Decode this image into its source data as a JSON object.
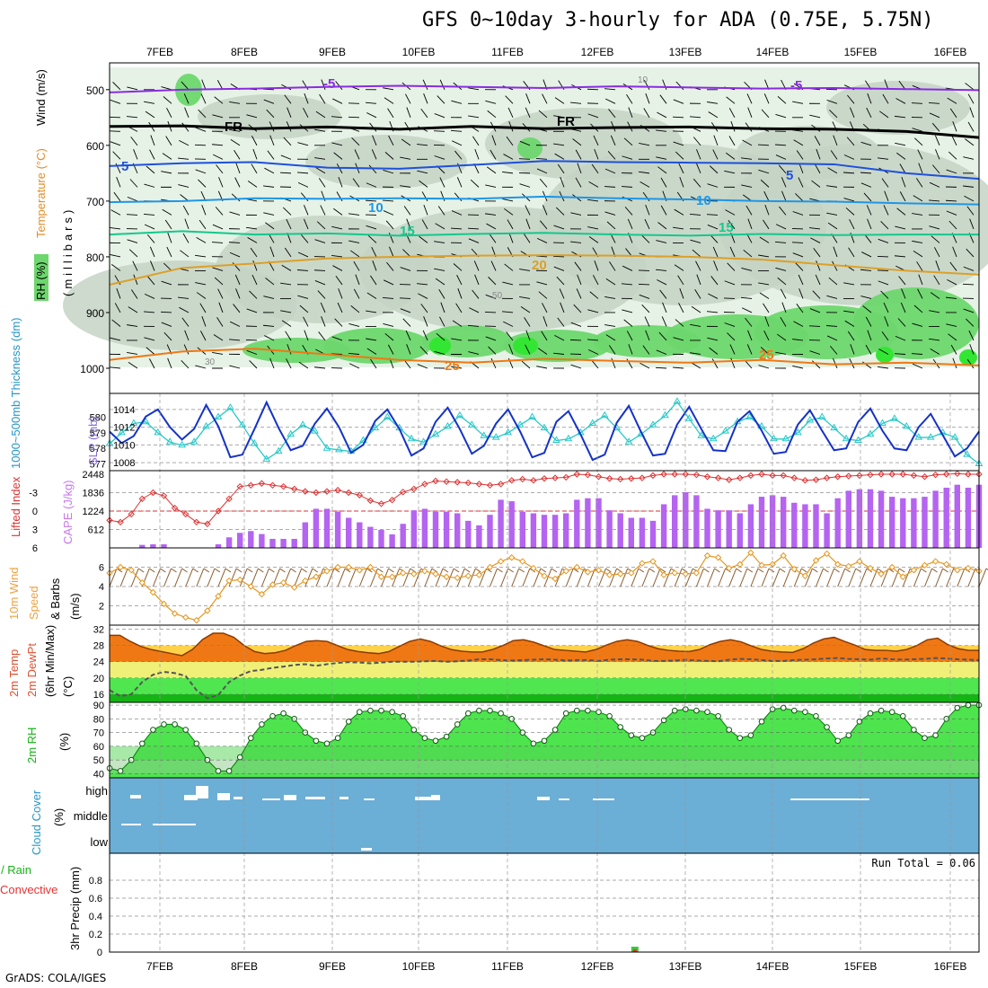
{
  "title": "GFS 0~10day 3-hourly for ADA (0.75E, 5.75N)",
  "credit": "GrADS: COLA/IGES",
  "colors": {
    "rh_light": "#e6f2e6",
    "rh_mid": "#c4d4c4",
    "rh_green": "#6dd76d",
    "rh_bright": "#33e633",
    "iso_m5": "#8a2be2",
    "iso_fr": "#000000",
    "iso_5": "#1e50dc",
    "iso_10": "#1e96e6",
    "iso_15": "#14c88c",
    "iso_20": "#dca028",
    "iso_25": "#f07814",
    "slp": "#1432c8",
    "thickness": "#28c8c8",
    "li": "#dc3232",
    "cape": "#b464f0",
    "wind": "#e6961e",
    "barb": "#8b5a2b",
    "temp_fill": "#f07814",
    "dew": "#555555",
    "rh2m": "#14c814",
    "cloud": "#6baed6"
  },
  "chart_data": [
    {
      "type": "line",
      "panel": "upper-air cross-section",
      "ylabel": [
        "RH (%)",
        "Temperature (°C)",
        "Wind (m/s)",
        "(millibars)"
      ],
      "x_tick_labels": [
        "7FEB",
        "8FEB",
        "9FEB",
        "10FEB",
        "11FEB",
        "12FEB",
        "13FEB",
        "14FEB",
        "15FEB",
        "16FEB"
      ],
      "ylim": [
        1000,
        460
      ],
      "y_ticks": [
        500,
        600,
        700,
        800,
        900,
        1000
      ],
      "isotherm_labels": [
        "-5",
        "FR",
        "5",
        "10",
        "15",
        "20",
        "25"
      ],
      "rh_labels": [
        "30",
        "50",
        "10"
      ],
      "series": [
        {
          "name": "-5",
          "values": [
            505,
            500,
            498,
            495,
            493,
            495,
            497,
            494,
            496,
            498,
            497,
            499,
            501
          ]
        },
        {
          "name": "FR",
          "values": [
            566,
            565,
            570,
            567,
            571,
            566,
            570,
            568,
            567,
            570,
            571,
            575,
            586
          ]
        },
        {
          "name": "5",
          "values": [
            637,
            632,
            630,
            640,
            642,
            635,
            628,
            630,
            631,
            632,
            634,
            650,
            660
          ]
        },
        {
          "name": "10",
          "values": [
            702,
            700,
            695,
            696,
            695,
            696,
            692,
            695,
            697,
            700,
            701,
            704,
            706
          ]
        },
        {
          "name": "15",
          "values": [
            760,
            754,
            760,
            758,
            762,
            759,
            757,
            760,
            762,
            759,
            761,
            760,
            760
          ]
        },
        {
          "name": "20",
          "values": [
            850,
            820,
            812,
            803,
            800,
            798,
            797,
            798,
            800,
            805,
            815,
            825,
            832
          ]
        },
        {
          "name": "25",
          "values": [
            985,
            970,
            965,
            975,
            985,
            990,
            983,
            987,
            990,
            985,
            993,
            990,
            995
          ]
        }
      ]
    },
    {
      "type": "line",
      "panel": "SLP and thickness",
      "ylabel_left": "1000~500mb Thickness (dm)",
      "ylabel_right": "SLP (mb)",
      "left_ticks": [
        577,
        578,
        579,
        580
      ],
      "left_range": [
        576.8,
        581.3
      ],
      "right_ticks": [
        1008,
        1010,
        1012,
        1014
      ],
      "right_range": [
        1007.5,
        1015.4
      ],
      "series": [
        {
          "name": "SLP (mb)",
          "values": [
            1011.5,
            1010.2,
            1011.0,
            1013.2,
            1014.0,
            1012.0,
            1010.6,
            1011.8,
            1014.5,
            1012.1,
            1008.6,
            1008.9,
            1011.8,
            1014.8,
            1011.9,
            1009.4,
            1009.9,
            1012.4,
            1014.1,
            1012.0,
            1009.1,
            1010.0,
            1012.7,
            1014.0,
            1011.8,
            1008.8,
            1009.6,
            1012.6,
            1014.2,
            1011.8,
            1009.0,
            1009.9,
            1012.4,
            1014.0,
            1011.5,
            1008.6,
            1009.1,
            1012.6,
            1013.8,
            1011.2,
            1008.3,
            1008.9,
            1012.5,
            1014.4,
            1011.5,
            1008.8,
            1009.0,
            1012.3,
            1014.3,
            1011.8,
            1009.4,
            1009.3,
            1012.6,
            1013.8,
            1011.6,
            1009.0,
            1009.2,
            1012.3,
            1013.9,
            1011.6,
            1009.4,
            1009.6,
            1012.6,
            1014.1,
            1011.6,
            1009.6,
            1009.4,
            1012.0,
            1013.5,
            1011.1,
            1008.7,
            1009.6,
            1011.5
          ]
        },
        {
          "name": "Thickness (dm)",
          "values": [
            578.3,
            579.0,
            579.6,
            579.7,
            579.0,
            578.4,
            578.2,
            578.4,
            579.4,
            580.0,
            580.6,
            579.5,
            578.3,
            577.3,
            577.8,
            578.9,
            579.5,
            579.1,
            578.0,
            577.9,
            577.8,
            578.5,
            579.3,
            580.0,
            579.3,
            578.6,
            578.4,
            578.9,
            579.4,
            580.1,
            579.5,
            578.8,
            578.7,
            579.0,
            579.5,
            580.0,
            579.3,
            578.5,
            578.6,
            579.0,
            579.6,
            580.1,
            579.3,
            578.4,
            578.9,
            579.5,
            580.1,
            581.0,
            579.9,
            578.8,
            578.6,
            579.1,
            579.7,
            580.0,
            579.4,
            578.6,
            578.6,
            579.0,
            579.8,
            580.0,
            579.3,
            578.6,
            578.5,
            578.9,
            579.6,
            579.9,
            579.4,
            578.7,
            578.7,
            579.0,
            578.7,
            577.6,
            577.0
          ]
        }
      ]
    },
    {
      "type": "bar",
      "panel": "CAPE and Lifted Index",
      "ylabel_left": "Lifted Index",
      "ylabel_right": "CAPE (J/kg)",
      "li_ticks": [
        "-3",
        "0",
        "3",
        "6"
      ],
      "li_range": [
        -6,
        6
      ],
      "cape_ticks": [
        "612",
        "1224",
        "1836",
        "2448"
      ],
      "cape_range": [
        0,
        2448
      ],
      "series": [
        {
          "name": "CAPE (J/kg)",
          "values": [
            0,
            0,
            0,
            100,
            120,
            120,
            0,
            0,
            0,
            0,
            120,
            350,
            500,
            560,
            460,
            300,
            300,
            300,
            850,
            1300,
            1300,
            1200,
            1000,
            850,
            700,
            600,
            450,
            800,
            1250,
            1300,
            1200,
            1200,
            1150,
            900,
            750,
            1100,
            1600,
            1550,
            1200,
            1150,
            1100,
            1100,
            1150,
            1600,
            1650,
            1650,
            1250,
            1150,
            1000,
            1000,
            900,
            1450,
            1750,
            1850,
            1750,
            1300,
            1250,
            1250,
            1150,
            1450,
            1700,
            1750,
            1700,
            1500,
            1450,
            1450,
            1150,
            1650,
            1900,
            1950,
            1950,
            1900,
            1700,
            1650,
            1650,
            1700,
            1900,
            2000,
            2100,
            2000,
            2100
          ]
        },
        {
          "name": "Lifted Index",
          "values": [
            1.5,
            1.8,
            0.5,
            -2.0,
            -3.0,
            -2.5,
            -0.5,
            0.5,
            1.8,
            2.1,
            0.0,
            -2.0,
            -4.0,
            -4.2,
            -4.5,
            -4.2,
            -4.0,
            -3.6,
            -3.2,
            -3.0,
            -3.2,
            -3.4,
            -3.0,
            -2.6,
            -1.7,
            -1.2,
            -1.8,
            -3.1,
            -3.6,
            -4.4,
            -4.9,
            -4.8,
            -4.7,
            -4.6,
            -4.4,
            -4.2,
            -4.4,
            -5.0,
            -5.2,
            -5.0,
            -5.3,
            -5.4,
            -5.5,
            -6.0,
            -5.9,
            -5.6,
            -5.3,
            -5.2,
            -5.3,
            -5.4,
            -5.8,
            -6.0,
            -6.0,
            -6.0,
            -5.9,
            -5.6,
            -5.4,
            -5.1,
            -5.4,
            -5.8,
            -6.0,
            -5.8,
            -5.8,
            -5.4,
            -5.0,
            -5.1,
            -5.4,
            -5.6,
            -5.7,
            -5.8,
            -5.9,
            -6.0,
            -6.0,
            -6.0,
            -5.8,
            -5.6,
            -5.9,
            -6.0,
            -6.1,
            -6.0,
            -6.0
          ]
        }
      ]
    },
    {
      "type": "line",
      "panel": "10m wind",
      "ylabel": [
        "10m Wind",
        "Speed",
        "& Barbs",
        "(m/s)"
      ],
      "y_ticks": [
        2,
        4,
        6
      ],
      "ylim": [
        0,
        8
      ],
      "series": [
        {
          "name": "Speed (m/s)",
          "values": [
            5.4,
            6.0,
            5.7,
            4.4,
            3.4,
            2.2,
            1.2,
            0.8,
            0.5,
            1.5,
            3.0,
            4.6,
            4.7,
            4.0,
            3.2,
            4.2,
            4.4,
            3.9,
            4.6,
            5.0,
            5.6,
            6.0,
            6.0,
            5.7,
            6.0,
            5.0,
            5.0,
            5.4,
            5.3,
            5.6,
            5.3,
            5.0,
            4.9,
            5.1,
            5.2,
            6.0,
            6.6,
            7.0,
            6.6,
            5.9,
            5.1,
            4.8,
            5.6,
            6.0,
            5.5,
            5.7,
            5.2,
            5.3,
            5.4,
            6.4,
            6.6,
            5.2,
            5.4,
            5.3,
            5.4,
            7.2,
            7.0,
            5.9,
            6.3,
            7.5,
            6.2,
            6.3,
            7.2,
            5.8,
            5.1,
            6.7,
            7.4,
            6.3,
            6.1,
            6.6,
            5.9,
            5.3,
            6.0,
            5.0,
            5.7,
            6.2,
            6.6,
            6.3,
            5.7,
            5.9,
            5.6
          ]
        }
      ]
    },
    {
      "type": "area",
      "panel": "2m temperature and dewpoint",
      "ylabel": [
        "2m Temp",
        "2m DewPt",
        "(6hr Min/Max)",
        "(°C)"
      ],
      "y_ticks": [
        16,
        20,
        24,
        28,
        32
      ],
      "ylim": [
        14,
        33
      ],
      "series": [
        {
          "name": "2m Temp (°C)",
          "values": [
            30.5,
            30.5,
            29.0,
            27.8,
            27.0,
            26.5,
            26.0,
            25.5,
            27.0,
            29.5,
            31.0,
            31.0,
            30.0,
            28.0,
            26.5,
            26.0,
            26.2,
            26.8,
            28.0,
            29.0,
            29.2,
            29.0,
            28.0,
            27.0,
            26.5,
            26.2,
            26.0,
            26.5,
            27.8,
            29.0,
            29.6,
            29.0,
            27.9,
            27.0,
            26.6,
            26.4,
            26.4,
            27.0,
            28.0,
            29.2,
            29.4,
            28.8,
            27.9,
            27.0,
            26.8,
            26.6,
            26.4,
            27.0,
            28.1,
            29.0,
            29.4,
            29.0,
            28.0,
            27.2,
            26.8,
            26.6,
            26.5,
            27.0,
            28.2,
            29.0,
            29.4,
            28.9,
            27.9,
            27.0,
            26.6,
            26.4,
            26.3,
            27.2,
            28.6,
            29.6,
            30.0,
            29.0,
            28.1,
            27.0,
            26.8,
            26.8,
            26.6,
            27.0,
            28.0,
            29.4,
            29.8,
            28.2,
            27.2,
            26.8,
            26.8
          ]
        },
        {
          "name": "2m DewPt (°C)",
          "values": [
            17.0,
            15.5,
            16.0,
            19.0,
            20.8,
            21.5,
            21.2,
            20.5,
            17.0,
            15.0,
            15.8,
            19.0,
            20.6,
            21.7,
            22.0,
            22.5,
            22.8,
            23.2,
            23.4,
            23.0,
            23.4,
            23.7,
            23.9,
            23.8,
            23.6,
            23.8,
            24.0,
            24.0,
            24.0,
            24.1,
            24.2,
            24.0,
            24.1,
            24.3,
            24.6,
            24.6,
            24.4,
            24.3,
            24.4,
            24.5,
            24.6,
            24.5,
            24.3,
            24.4,
            24.4,
            24.2,
            24.5,
            24.6,
            24.6,
            24.5,
            24.2,
            24.2,
            24.3,
            24.5,
            24.3,
            24.2,
            24.1,
            24.5,
            24.7,
            24.6,
            24.4,
            24.2,
            24.2,
            24.4,
            24.5,
            24.6,
            24.8,
            24.9,
            24.7,
            24.6,
            24.5,
            24.8,
            24.6,
            24.5,
            24.6,
            24.7,
            24.9,
            24.8,
            24.6,
            24.5,
            24.4
          ]
        }
      ]
    },
    {
      "type": "area",
      "panel": "2m relative humidity",
      "ylabel": [
        "2m RH",
        "(%)"
      ],
      "y_ticks": [
        40,
        50,
        60,
        70,
        80,
        90
      ],
      "ylim": [
        37,
        92
      ],
      "series": [
        {
          "name": "2m RH (%)",
          "values": [
            44,
            42,
            50,
            62,
            72,
            76,
            76,
            72,
            62,
            50,
            42,
            42,
            52,
            66,
            76,
            82,
            84,
            80,
            70,
            64,
            62,
            66,
            78,
            85,
            86,
            86,
            85,
            82,
            72,
            66,
            64,
            67,
            76,
            84,
            86,
            86,
            84,
            80,
            70,
            62,
            64,
            72,
            84,
            86,
            86,
            85,
            82,
            74,
            68,
            66,
            70,
            79,
            86,
            87,
            86,
            85,
            82,
            72,
            66,
            68,
            78,
            87,
            88,
            86,
            85,
            82,
            74,
            64,
            68,
            78,
            84,
            86,
            85,
            82,
            72,
            66,
            68,
            80,
            88,
            90,
            90
          ]
        }
      ]
    },
    {
      "type": "bar",
      "panel": "cloud cover",
      "ylabel": [
        "Cloud Cover",
        "(%)"
      ],
      "categories": [
        "high",
        "middle",
        "low"
      ]
    },
    {
      "type": "bar",
      "panel": "3hr precipitation",
      "ylabel_left": [
        "Total / Rain",
        "Convective"
      ],
      "ylabel": "3hr Precip (mm)",
      "annotation": "Run Total = 0.06",
      "y_ticks": [
        "0",
        "0.2",
        "0.4",
        "0.6",
        "0.8"
      ],
      "ylim": [
        0,
        1
      ],
      "x_tick_labels": [
        "7FEB",
        "8FEB",
        "9FEB",
        "10FEB",
        "11FEB",
        "12FEB",
        "13FEB",
        "14FEB",
        "15FEB",
        "16FEB"
      ],
      "series": [
        {
          "name": "Total / Rain (mm)",
          "values": [
            {
              "x": 5.8,
              "y": 0.06
            }
          ]
        },
        {
          "name": "Convective (mm)",
          "values": [
            {
              "x": 5.8,
              "y": 0.03
            }
          ]
        }
      ]
    }
  ]
}
